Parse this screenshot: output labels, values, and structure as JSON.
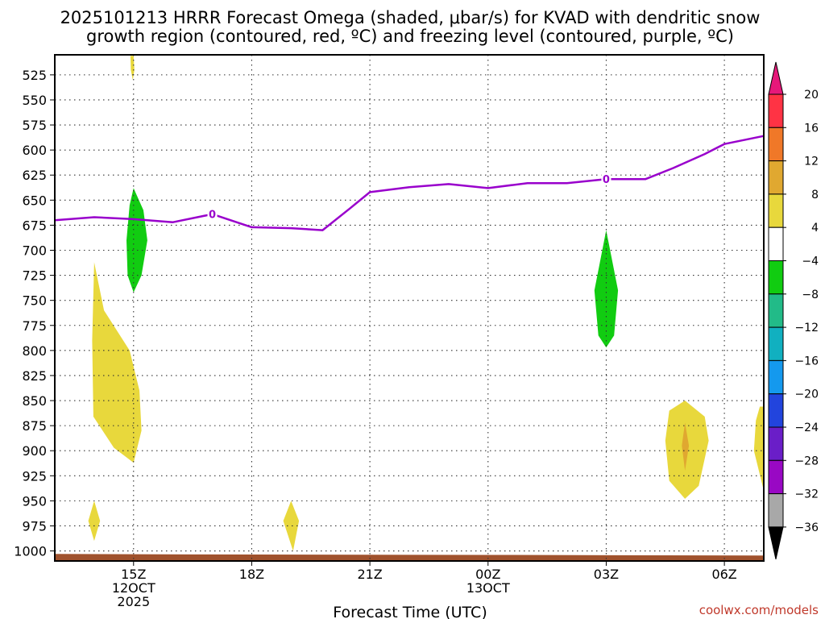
{
  "chart_data": {
    "type": "contour",
    "title_line1": "2025101213 HRRR Forecast Omega (shaded, μbar/s) for KVAD with dendritic snow",
    "title_line2": "growth region (contoured, red, ºC) and freezing level (contoured, purple, ºC)",
    "xlabel": "Forecast Time (UTC)",
    "watermark": "coolwx.com/models",
    "x_range_hours": [
      13.0,
      7.0
    ],
    "x_ticks": [
      {
        "hour": 15,
        "lines": [
          "15Z",
          "12OCT",
          "2025"
        ]
      },
      {
        "hour": 18,
        "lines": [
          "18Z"
        ]
      },
      {
        "hour": 21,
        "lines": [
          "21Z"
        ]
      },
      {
        "hour": 24,
        "lines": [
          "00Z",
          "13OCT"
        ]
      },
      {
        "hour": 27,
        "lines": [
          "03Z"
        ]
      },
      {
        "hour": 30,
        "lines": [
          "06Z"
        ]
      }
    ],
    "y_range_mb": [
      1010,
      505
    ],
    "y_ticks": [
      525,
      550,
      575,
      600,
      625,
      650,
      675,
      700,
      725,
      750,
      775,
      800,
      825,
      850,
      875,
      900,
      925,
      950,
      975,
      1000
    ],
    "colorbar": {
      "labels": [
        "20",
        "16",
        "12",
        "8",
        "4",
        "−4",
        "−8",
        "−12",
        "−16",
        "−20",
        "−24",
        "−28",
        "−32",
        "−36"
      ],
      "colors": [
        "#ff3344",
        "#f07828",
        "#e0a830",
        "#e8d83c",
        "#ffffff",
        "#11cc11",
        "#22bb88",
        "#11b0c0",
        "#1499ee",
        "#2244dd",
        "#6a1ec8",
        "#9908c4",
        "#a8a8a8"
      ],
      "top_arrow_color": "#e6187a",
      "bottom_arrow_color": "#000000"
    },
    "freezing_level": {
      "label": "0",
      "color": "#9900cc",
      "points": [
        [
          13.0,
          670
        ],
        [
          14.0,
          667
        ],
        [
          15.0,
          669
        ],
        [
          16.0,
          672
        ],
        [
          17.0,
          664
        ],
        [
          18.0,
          677
        ],
        [
          19.0,
          678
        ],
        [
          19.8,
          680
        ],
        [
          20.5,
          658
        ],
        [
          21.0,
          642
        ],
        [
          22.0,
          637
        ],
        [
          23.0,
          634
        ],
        [
          24.0,
          638
        ],
        [
          25.0,
          633
        ],
        [
          26.0,
          633
        ],
        [
          27.0,
          629
        ],
        [
          28.0,
          629
        ],
        [
          28.7,
          618
        ],
        [
          29.5,
          604
        ],
        [
          30.0,
          594
        ],
        [
          31.0,
          586
        ]
      ],
      "label_positions": [
        [
          17.0,
          664
        ],
        [
          27.0,
          629
        ]
      ]
    },
    "omega_regions": [
      {
        "value_range": "4 to 8",
        "color": "#e8d83c",
        "polygon": [
          [
            15.0,
            506
          ],
          [
            15.02,
            520
          ],
          [
            14.98,
            530
          ],
          [
            14.93,
            520
          ],
          [
            14.92,
            506
          ]
        ]
      },
      {
        "value_range": "-8 to -4",
        "color": "#11cc11",
        "polygon": [
          [
            15.0,
            638
          ],
          [
            15.25,
            660
          ],
          [
            15.35,
            690
          ],
          [
            15.2,
            725
          ],
          [
            15.0,
            742
          ],
          [
            14.85,
            725
          ],
          [
            14.82,
            690
          ],
          [
            14.9,
            655
          ]
        ]
      },
      {
        "value_range": "4 to 8",
        "color": "#e8d83c",
        "polygon": [
          [
            14.0,
            712
          ],
          [
            14.25,
            760
          ],
          [
            14.9,
            800
          ],
          [
            15.15,
            840
          ],
          [
            15.2,
            880
          ],
          [
            15.0,
            912
          ],
          [
            14.5,
            897
          ],
          [
            13.98,
            866
          ],
          [
            13.95,
            790
          ]
        ]
      },
      {
        "value_range": "4 to 8",
        "color": "#e8d83c",
        "polygon": [
          [
            14.0,
            950
          ],
          [
            14.15,
            970
          ],
          [
            14.0,
            990
          ],
          [
            13.85,
            970
          ]
        ]
      },
      {
        "value_range": "4 to 8",
        "color": "#e8d83c",
        "polygon": [
          [
            19.0,
            950
          ],
          [
            19.2,
            970
          ],
          [
            19.05,
            1000
          ],
          [
            18.8,
            970
          ]
        ]
      },
      {
        "value_range": "-8 to -4",
        "color": "#11cc11",
        "polygon": [
          [
            27.0,
            680
          ],
          [
            27.3,
            740
          ],
          [
            27.2,
            785
          ],
          [
            27.0,
            797
          ],
          [
            26.8,
            785
          ],
          [
            26.7,
            740
          ]
        ]
      },
      {
        "value_range": "4 to 8",
        "color": "#e8d83c",
        "polygon": [
          [
            29.0,
            850
          ],
          [
            29.5,
            866
          ],
          [
            29.6,
            890
          ],
          [
            29.35,
            935
          ],
          [
            29.0,
            948
          ],
          [
            28.6,
            930
          ],
          [
            28.5,
            890
          ],
          [
            28.6,
            860
          ]
        ]
      },
      {
        "value_range": "8 to 12",
        "color": "#e0a830",
        "polygon": [
          [
            29.0,
            872
          ],
          [
            29.1,
            895
          ],
          [
            29.0,
            920
          ],
          [
            28.92,
            895
          ]
        ]
      },
      {
        "value_range": "4 to 8",
        "color": "#e8d83c",
        "polygon": [
          [
            30.9,
            856
          ],
          [
            31.0,
            856
          ],
          [
            31.0,
            940
          ],
          [
            30.95,
            932
          ],
          [
            30.75,
            900
          ],
          [
            30.8,
            870
          ]
        ]
      }
    ],
    "terrain": {
      "color": "#a0522d",
      "points": [
        [
          13.0,
          1003
        ],
        [
          16.5,
          1003.5
        ],
        [
          24.0,
          1004
        ],
        [
          31.0,
          1004.5
        ]
      ]
    }
  }
}
